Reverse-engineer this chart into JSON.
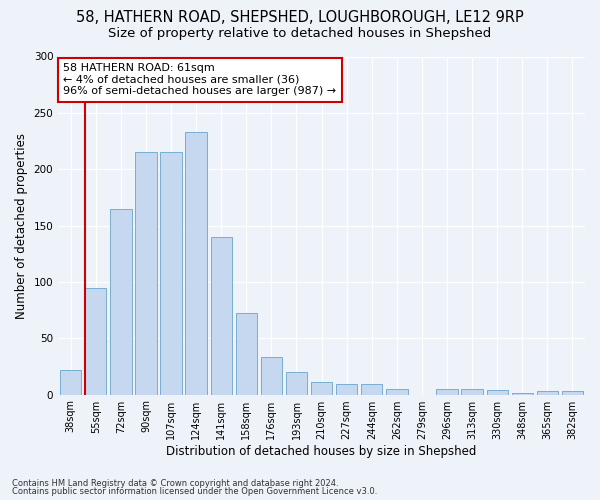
{
  "title1": "58, HATHERN ROAD, SHEPSHED, LOUGHBOROUGH, LE12 9RP",
  "title2": "Size of property relative to detached houses in Shepshed",
  "xlabel": "Distribution of detached houses by size in Shepshed",
  "ylabel": "Number of detached properties",
  "categories": [
    "38sqm",
    "55sqm",
    "72sqm",
    "90sqm",
    "107sqm",
    "124sqm",
    "141sqm",
    "158sqm",
    "176sqm",
    "193sqm",
    "210sqm",
    "227sqm",
    "244sqm",
    "262sqm",
    "279sqm",
    "296sqm",
    "313sqm",
    "330sqm",
    "348sqm",
    "365sqm",
    "382sqm"
  ],
  "values": [
    22,
    95,
    165,
    215,
    215,
    233,
    140,
    72,
    33,
    20,
    11,
    9,
    9,
    5,
    0,
    5,
    5,
    4,
    1,
    3,
    3
  ],
  "bar_color": "#c5d8f0",
  "bar_edge_color": "#7aadd4",
  "vline_color": "#cc0000",
  "vline_pos": 0.55,
  "annotation_line1": "58 HATHERN ROAD: 61sqm",
  "annotation_line2": "← 4% of detached houses are smaller (36)",
  "annotation_line3": "96% of semi-detached houses are larger (987) →",
  "annotation_box_facecolor": "#ffffff",
  "annotation_box_edgecolor": "#cc0000",
  "ylim": [
    0,
    300
  ],
  "yticks": [
    0,
    50,
    100,
    150,
    200,
    250,
    300
  ],
  "footer1": "Contains HM Land Registry data © Crown copyright and database right 2024.",
  "footer2": "Contains public sector information licensed under the Open Government Licence v3.0.",
  "bg_color": "#eef2f9",
  "plot_bg_color": "#eef2f9",
  "title_fontsize": 10.5,
  "subtitle_fontsize": 9.5,
  "tick_fontsize": 7,
  "ylabel_fontsize": 8.5,
  "xlabel_fontsize": 8.5,
  "footer_fontsize": 6,
  "annot_fontsize": 8
}
